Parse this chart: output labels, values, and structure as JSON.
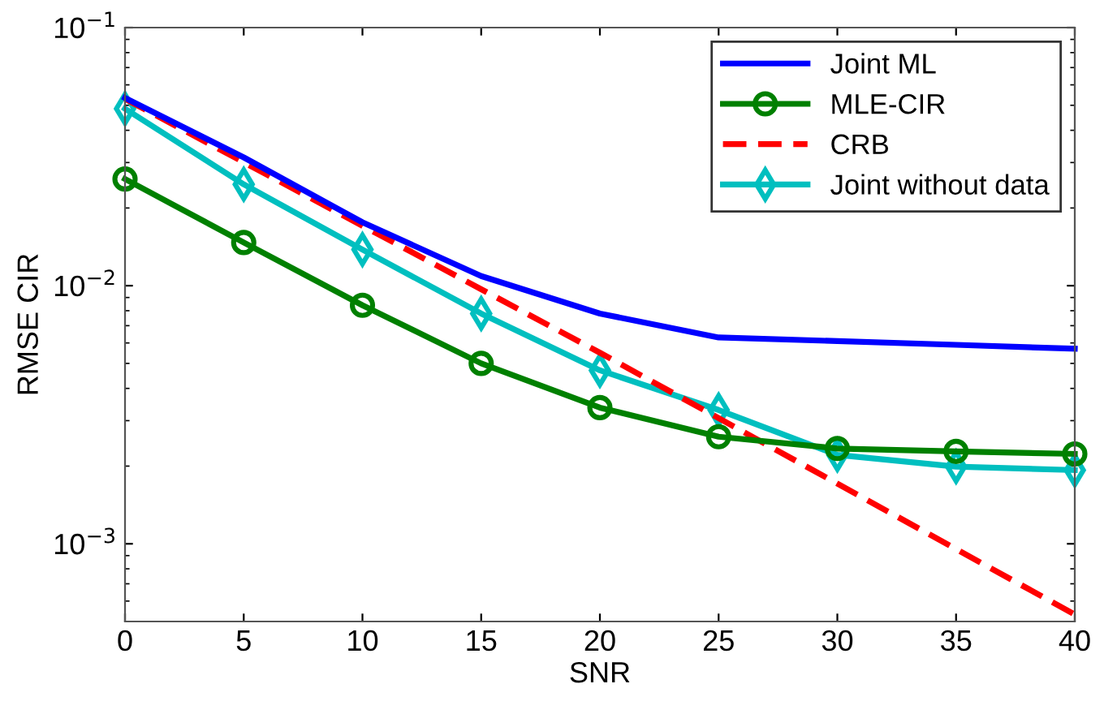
{
  "chart_data": {
    "type": "line",
    "xlabel": "SNR",
    "ylabel": "RMSE CIR",
    "log": "y",
    "grid": false,
    "legend": "top right",
    "xlim": [
      0,
      40
    ],
    "xticks": [
      0,
      5,
      10,
      15,
      20,
      25,
      30,
      35,
      40
    ],
    "ylim": [
      0.0005,
      0.1
    ],
    "yticks": [
      {
        "value": 0.001,
        "label": "10$^{−3}$"
      },
      {
        "value": 0.01,
        "label": "10$^{−2}$"
      },
      {
        "value": 0.1,
        "label": "10$^{−1}$"
      }
    ],
    "x": [
      0,
      5,
      10,
      15,
      20,
      25,
      30,
      35,
      40
    ],
    "series": [
      {
        "name": "Joint ML",
        "color": "#0000ff",
        "marker": "none",
        "line_style": "solid",
        "values": [
          0.0534,
          0.0314,
          0.0176,
          0.0109,
          0.0078,
          0.0063,
          0.0061,
          0.0059,
          0.0057
        ]
      },
      {
        "name": "MLE-CIR",
        "color": "#008000",
        "marker": "circle",
        "line_style": "solid",
        "values": [
          0.0259,
          0.0147,
          0.0084,
          0.005,
          0.00337,
          0.0026,
          0.00234,
          0.00228,
          0.00223
        ]
      },
      {
        "name": "CRB",
        "color": "#ff0000",
        "marker": "none",
        "line_style": "dashed",
        "x": [
          0,
          20,
          40
        ],
        "values": [
          0.053,
          0.0055,
          0.000532
        ]
      },
      {
        "name": "Joint without data",
        "color": "#00bfbf",
        "marker": "diamond",
        "line_style": "solid",
        "values": [
          0.0485,
          0.0247,
          0.0138,
          0.0078,
          0.0047,
          0.0033,
          0.00221,
          0.00199,
          0.00193
        ]
      }
    ]
  }
}
